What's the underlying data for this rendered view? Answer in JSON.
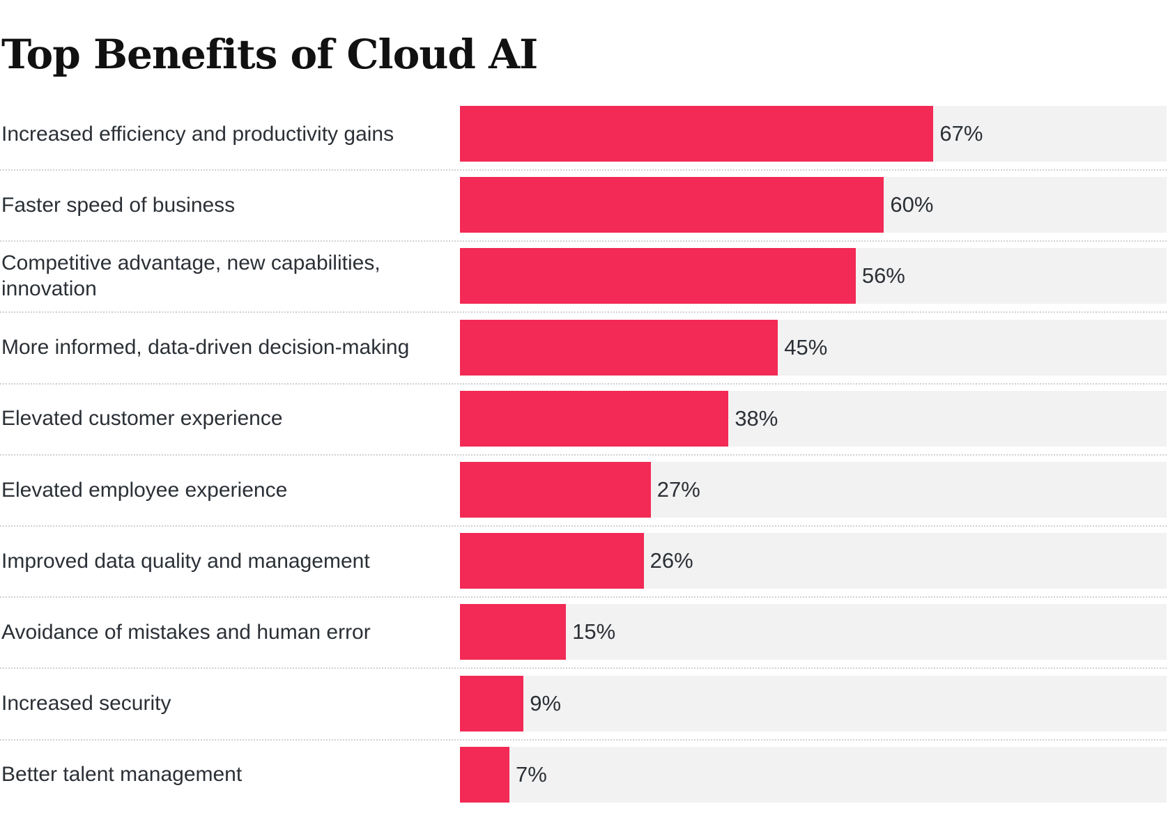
{
  "chart_data": {
    "type": "bar",
    "orientation": "horizontal",
    "title": "Top Benefits of Cloud AI",
    "xlabel": "",
    "ylabel": "",
    "xlim": [
      0,
      100
    ],
    "grid": false,
    "value_suffix": "%",
    "categories": [
      "Increased efficiency and productivity gains",
      "Faster speed of business",
      "Competitive advantage, new capabilities, innovation",
      "More informed, data-driven decision-making",
      "Elevated customer experience",
      "Elevated employee experience",
      "Improved data quality and management",
      "Avoidance of mistakes and human error",
      "Increased security",
      "Better talent management"
    ],
    "values": [
      67,
      60,
      56,
      45,
      38,
      27,
      26,
      15,
      9,
      7
    ],
    "data_labels": [
      "67%",
      "60%",
      "56%",
      "45%",
      "38%",
      "27%",
      "26%",
      "15%",
      "9%",
      "7%"
    ],
    "colors": {
      "bar": "#f22a55",
      "track": "#f2f2f2",
      "text": "#2b3036"
    }
  }
}
